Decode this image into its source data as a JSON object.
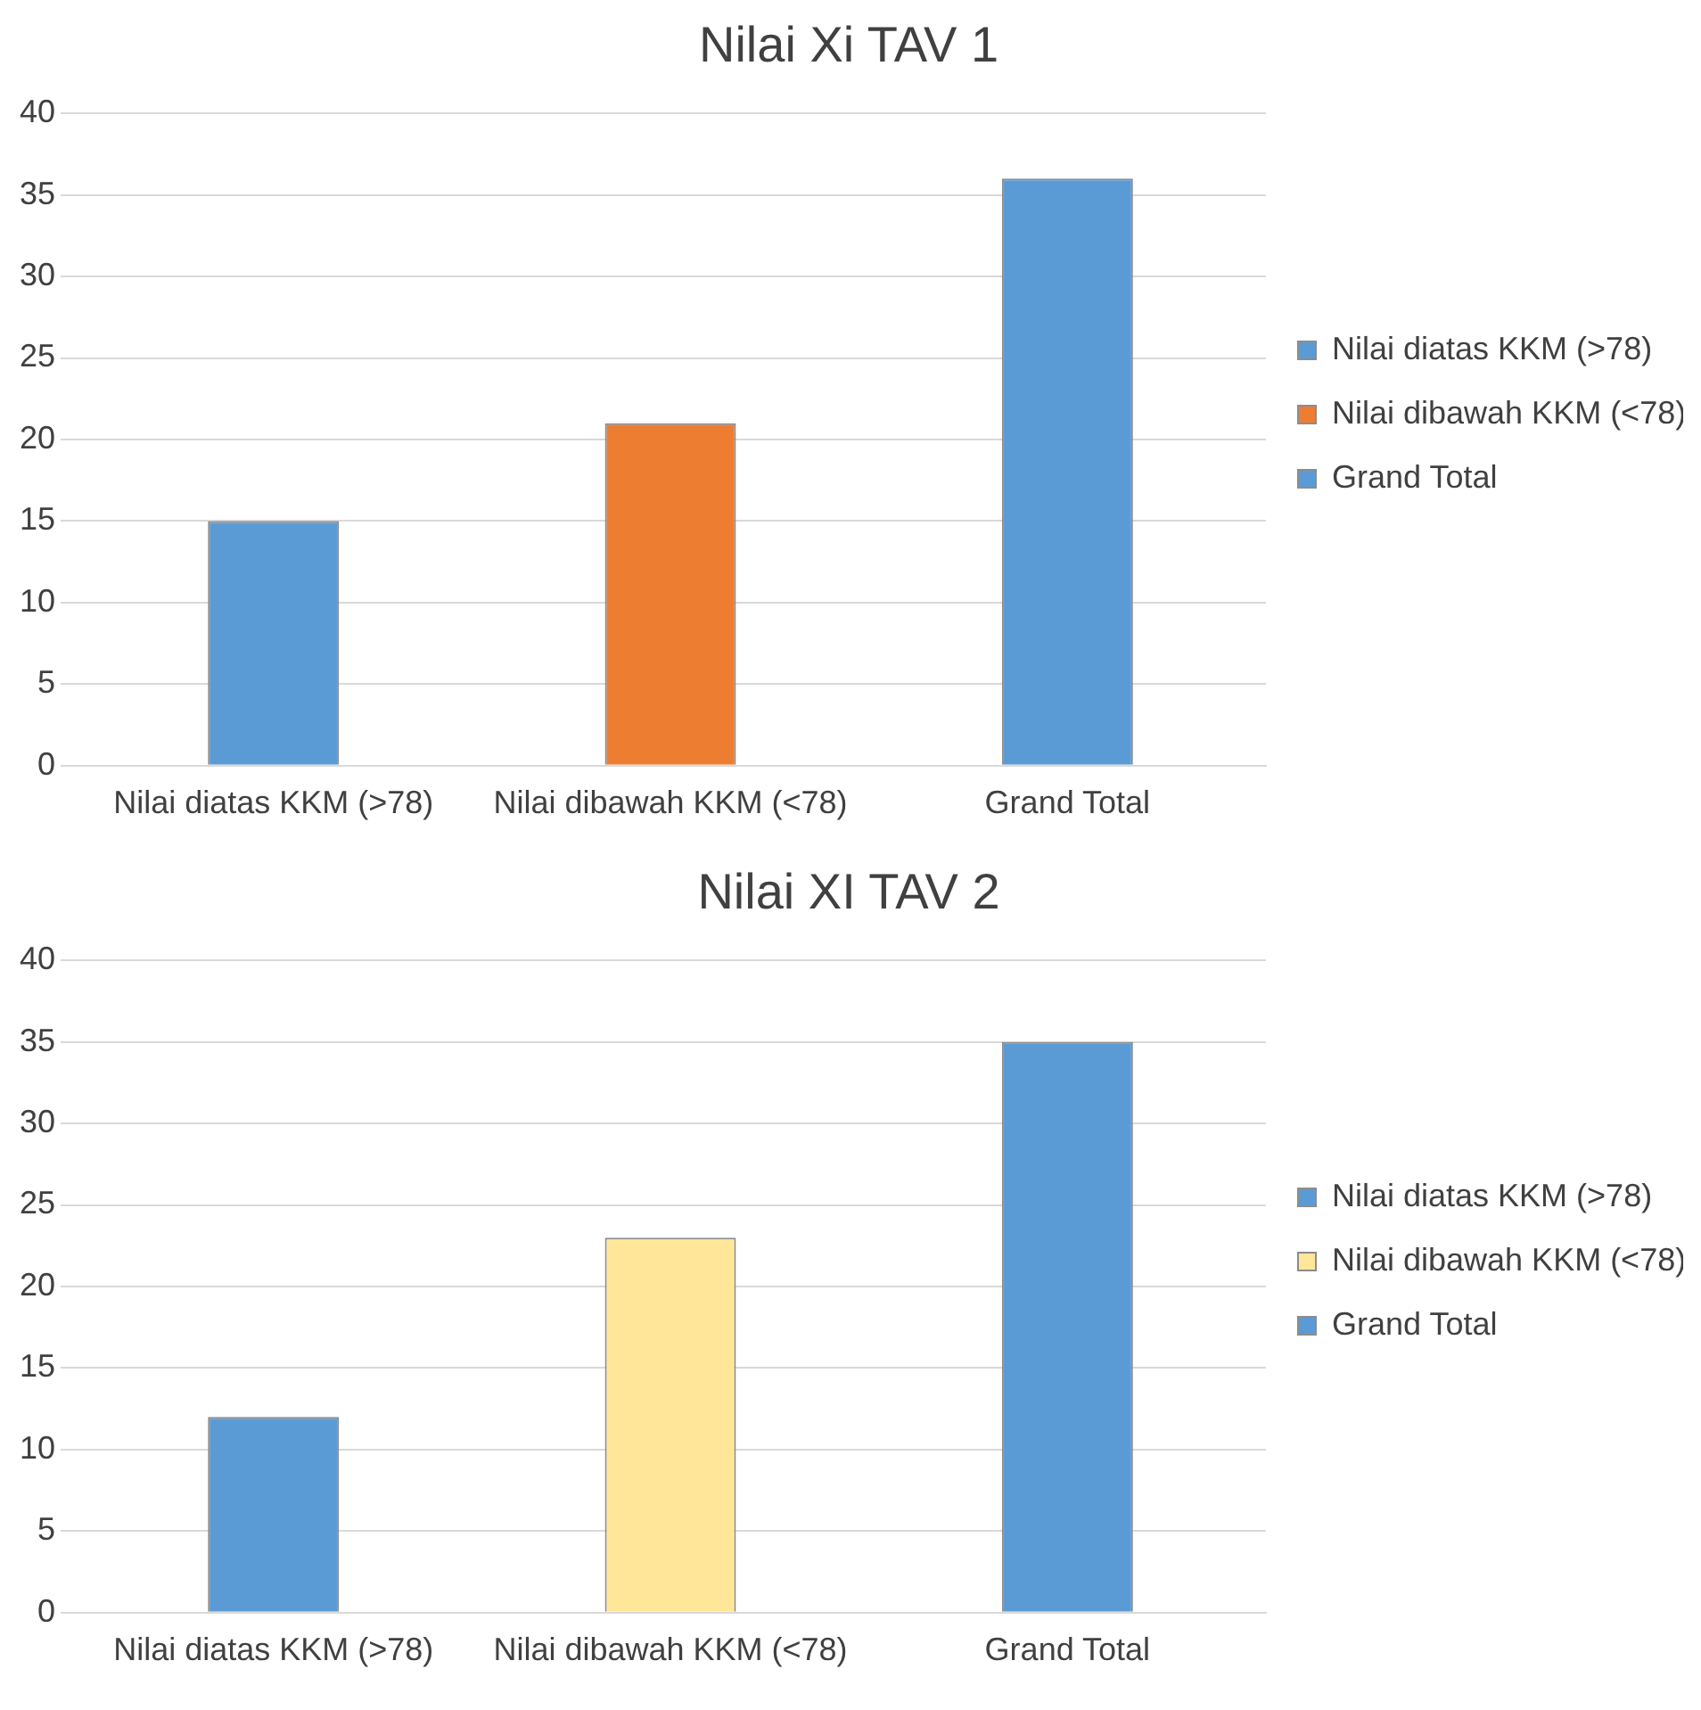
{
  "chart_data": [
    {
      "type": "bar",
      "title": "Nilai Xi TAV 1",
      "categories": [
        "Nilai diatas KKM (>78)",
        "Nilai dibawah KKM (<78)",
        "Grand Total"
      ],
      "series": [
        {
          "name": "Nilai diatas KKM (>78)",
          "color": "#5b9bd5",
          "values": [
            15,
            null,
            null
          ]
        },
        {
          "name": "Nilai dibawah KKM (<78)",
          "color": "#ed7d31",
          "values": [
            null,
            21,
            null
          ]
        },
        {
          "name": "Grand Total",
          "color": "#5b9bd5",
          "values": [
            null,
            null,
            36
          ]
        }
      ],
      "ylim": [
        0,
        40
      ],
      "yticks": [
        0,
        5,
        10,
        15,
        20,
        25,
        30,
        35,
        40
      ],
      "grid": "y",
      "legend": "right"
    },
    {
      "type": "bar",
      "title": "Nilai XI TAV 2",
      "categories": [
        "Nilai diatas KKM (>78)",
        "Nilai dibawah KKM (<78)",
        "Grand Total"
      ],
      "series": [
        {
          "name": "Nilai diatas KKM (>78)",
          "color": "#5b9bd5",
          "values": [
            12,
            null,
            null
          ]
        },
        {
          "name": "Nilai dibawah KKM (<78)",
          "color": "#ffe699",
          "values": [
            null,
            23,
            null
          ]
        },
        {
          "name": "Grand Total",
          "color": "#5b9bd5",
          "values": [
            null,
            null,
            35
          ]
        }
      ],
      "ylim": [
        0,
        40
      ],
      "yticks": [
        0,
        5,
        10,
        15,
        20,
        25,
        30,
        35,
        40
      ],
      "grid": "y",
      "legend": "right"
    }
  ]
}
